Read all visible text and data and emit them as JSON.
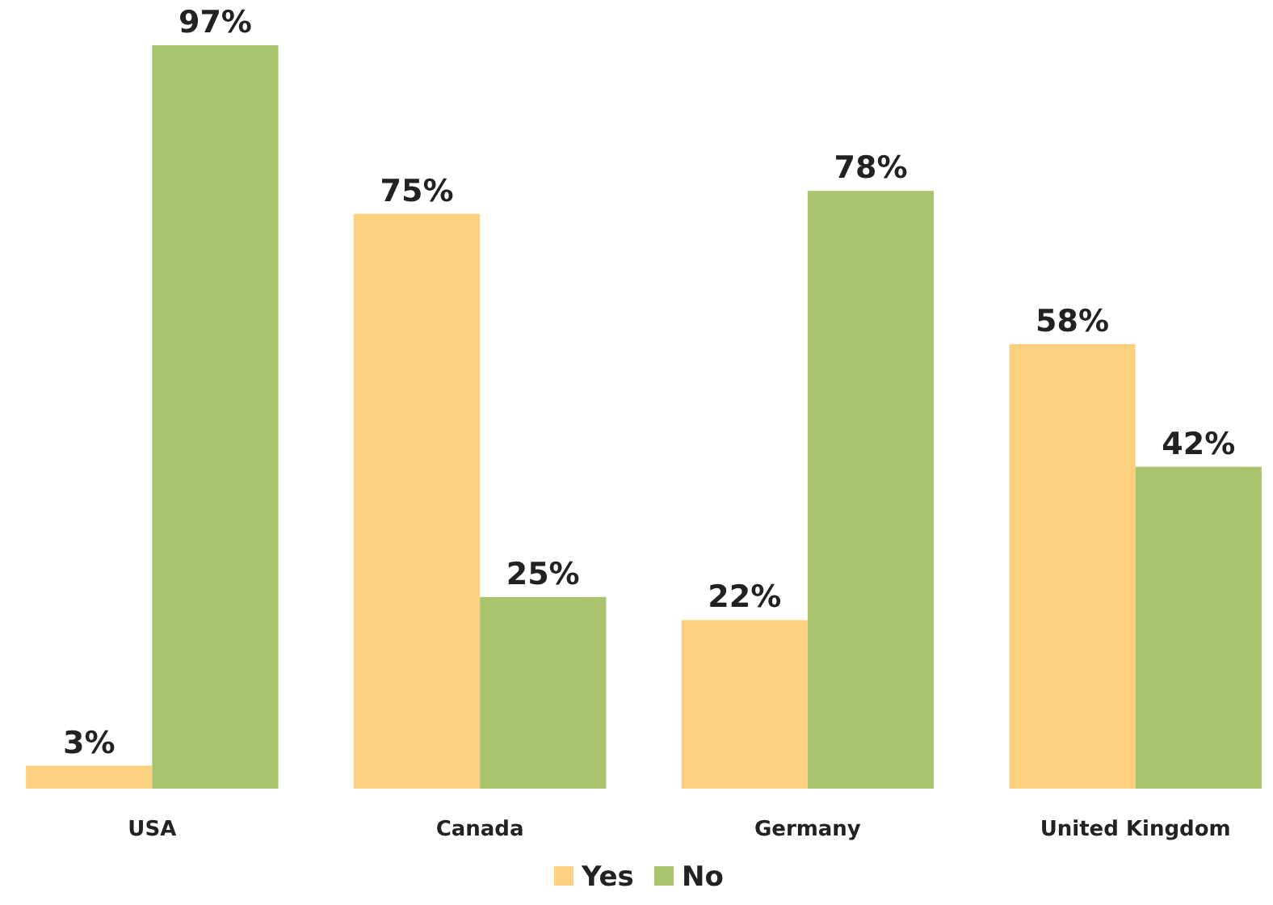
{
  "chart_data": {
    "type": "bar",
    "categories": [
      "USA",
      "Canada",
      "Germany",
      "United Kingdom"
    ],
    "series": [
      {
        "name": "Yes",
        "color": "#fdd07f",
        "values": [
          3,
          75,
          22,
          58
        ],
        "value_labels": [
          "3%",
          "75%",
          "22%",
          "58%"
        ]
      },
      {
        "name": "No",
        "color": "#a9c46c",
        "values": [
          97,
          25,
          78,
          42
        ],
        "value_labels": [
          "97%",
          "25%",
          "78%",
          "42%"
        ]
      }
    ],
    "legend": "bottom"
  }
}
